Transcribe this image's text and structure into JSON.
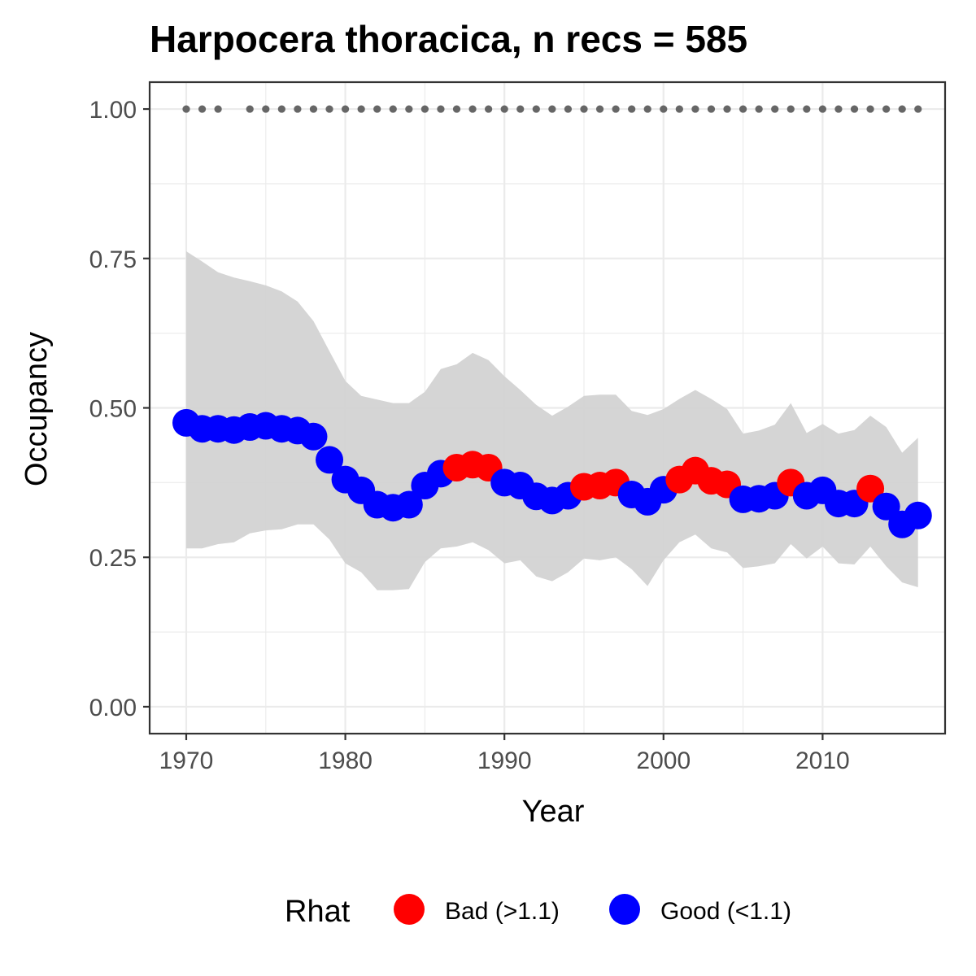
{
  "chart_data": {
    "type": "line",
    "title": "Harpocera thoracica, n recs = 585",
    "xlabel": "Year",
    "ylabel": "Occupancy",
    "xlim": [
      1967.7,
      2017.7
    ],
    "ylim": [
      -0.045,
      1.045
    ],
    "x_ticks": [
      1970,
      1980,
      1990,
      2000,
      2010
    ],
    "x_tick_labels": [
      "1970",
      "1980",
      "1990",
      "2000",
      "2010"
    ],
    "y_ticks": [
      0,
      0.25,
      0.5,
      0.75,
      1.0
    ],
    "y_tick_labels": [
      "0.00",
      "0.25",
      "0.50",
      "0.75",
      "1.00"
    ],
    "grid": true,
    "years": [
      1970,
      1971,
      1972,
      1973,
      1974,
      1975,
      1976,
      1977,
      1978,
      1979,
      1980,
      1981,
      1982,
      1983,
      1984,
      1985,
      1986,
      1987,
      1988,
      1989,
      1990,
      1991,
      1992,
      1993,
      1994,
      1995,
      1996,
      1997,
      1998,
      1999,
      2000,
      2001,
      2002,
      2003,
      2004,
      2005,
      2006,
      2007,
      2008,
      2009,
      2010,
      2011,
      2012,
      2013,
      2014,
      2015,
      2016
    ],
    "occupancy": [
      0.475,
      0.465,
      0.465,
      0.463,
      0.468,
      0.47,
      0.465,
      0.462,
      0.452,
      0.413,
      0.38,
      0.362,
      0.338,
      0.333,
      0.338,
      0.37,
      0.39,
      0.4,
      0.405,
      0.4,
      0.375,
      0.37,
      0.352,
      0.345,
      0.353,
      0.368,
      0.37,
      0.375,
      0.355,
      0.343,
      0.363,
      0.38,
      0.395,
      0.378,
      0.372,
      0.347,
      0.348,
      0.353,
      0.375,
      0.353,
      0.362,
      0.34,
      0.34,
      0.365,
      0.335,
      0.305,
      0.32
    ],
    "ci_upper": [
      0.762,
      0.745,
      0.727,
      0.718,
      0.712,
      0.705,
      0.695,
      0.678,
      0.645,
      0.595,
      0.545,
      0.52,
      0.514,
      0.508,
      0.508,
      0.527,
      0.565,
      0.573,
      0.592,
      0.58,
      0.553,
      0.53,
      0.505,
      0.487,
      0.502,
      0.52,
      0.522,
      0.522,
      0.495,
      0.488,
      0.498,
      0.515,
      0.53,
      0.515,
      0.498,
      0.457,
      0.462,
      0.472,
      0.508,
      0.458,
      0.473,
      0.457,
      0.463,
      0.487,
      0.468,
      0.425,
      0.45
    ],
    "ci_lower": [
      0.265,
      0.265,
      0.272,
      0.275,
      0.29,
      0.295,
      0.297,
      0.305,
      0.305,
      0.28,
      0.24,
      0.225,
      0.195,
      0.195,
      0.197,
      0.242,
      0.265,
      0.268,
      0.275,
      0.262,
      0.24,
      0.245,
      0.218,
      0.21,
      0.225,
      0.248,
      0.245,
      0.25,
      0.23,
      0.202,
      0.245,
      0.275,
      0.288,
      0.265,
      0.258,
      0.232,
      0.235,
      0.24,
      0.272,
      0.248,
      0.268,
      0.24,
      0.238,
      0.268,
      0.235,
      0.208,
      0.2
    ],
    "rhat_status": [
      "Good",
      "Good",
      "Good",
      "Good",
      "Good",
      "Good",
      "Good",
      "Good",
      "Good",
      "Good",
      "Good",
      "Good",
      "Good",
      "Good",
      "Good",
      "Good",
      "Good",
      "Bad",
      "Bad",
      "Bad",
      "Good",
      "Good",
      "Good",
      "Good",
      "Good",
      "Bad",
      "Bad",
      "Bad",
      "Good",
      "Good",
      "Good",
      "Bad",
      "Bad",
      "Bad",
      "Bad",
      "Good",
      "Good",
      "Good",
      "Bad",
      "Good",
      "Good",
      "Good",
      "Good",
      "Bad",
      "Good",
      "Good",
      "Good"
    ],
    "record_years": [
      1970,
      1971,
      1972,
      1974,
      1975,
      1976,
      1977,
      1978,
      1979,
      1980,
      1981,
      1982,
      1983,
      1984,
      1985,
      1986,
      1987,
      1988,
      1989,
      1990,
      1991,
      1992,
      1993,
      1994,
      1995,
      1996,
      1997,
      1998,
      1999,
      2000,
      2001,
      2002,
      2003,
      2004,
      2005,
      2006,
      2007,
      2008,
      2009,
      2010,
      2011,
      2012,
      2013,
      2014,
      2015,
      2016
    ],
    "record_marker_y": 1.0,
    "legend": {
      "title": "Rhat",
      "position": "bottom",
      "entries": [
        {
          "label": "Bad (>1.1)",
          "status": "Bad",
          "color": "#ff0000"
        },
        {
          "label": "Good (<1.1)",
          "status": "Good",
          "color": "#0000ff"
        }
      ]
    },
    "colors": {
      "ribbon": "#d3d3d3",
      "record_points": "#666666",
      "panel_border": "#333333",
      "grid": "#ebebeb"
    }
  }
}
